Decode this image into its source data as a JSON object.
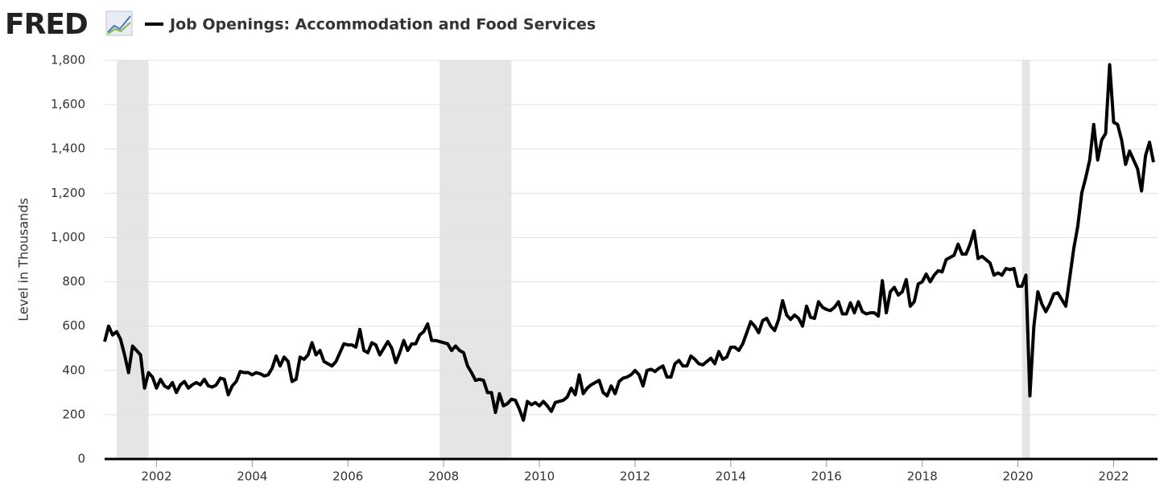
{
  "chart_data": {
    "type": "line",
    "logo": "FRED",
    "y_label": "Level in Thousands",
    "x": [
      "2000-12",
      "2001-01",
      "2001-02",
      "2001-03",
      "2001-04",
      "2001-05",
      "2001-06",
      "2001-07",
      "2001-08",
      "2001-09",
      "2001-10",
      "2001-11",
      "2001-12",
      "2002-01",
      "2002-02",
      "2002-03",
      "2002-04",
      "2002-05",
      "2002-06",
      "2002-07",
      "2002-08",
      "2002-09",
      "2002-10",
      "2002-11",
      "2002-12",
      "2003-01",
      "2003-02",
      "2003-03",
      "2003-04",
      "2003-05",
      "2003-06",
      "2003-07",
      "2003-08",
      "2003-09",
      "2003-10",
      "2003-11",
      "2003-12",
      "2004-01",
      "2004-02",
      "2004-03",
      "2004-04",
      "2004-05",
      "2004-06",
      "2004-07",
      "2004-08",
      "2004-09",
      "2004-10",
      "2004-11",
      "2004-12",
      "2005-01",
      "2005-02",
      "2005-03",
      "2005-04",
      "2005-05",
      "2005-06",
      "2005-07",
      "2005-08",
      "2005-09",
      "2005-10",
      "2005-11",
      "2005-12",
      "2006-01",
      "2006-02",
      "2006-03",
      "2006-04",
      "2006-05",
      "2006-06",
      "2006-07",
      "2006-08",
      "2006-09",
      "2006-10",
      "2006-11",
      "2006-12",
      "2007-01",
      "2007-02",
      "2007-03",
      "2007-04",
      "2007-05",
      "2007-06",
      "2007-07",
      "2007-08",
      "2007-09",
      "2007-10",
      "2007-11",
      "2007-12",
      "2008-01",
      "2008-02",
      "2008-03",
      "2008-04",
      "2008-05",
      "2008-06",
      "2008-07",
      "2008-08",
      "2008-09",
      "2008-10",
      "2008-11",
      "2008-12",
      "2009-01",
      "2009-02",
      "2009-03",
      "2009-04",
      "2009-05",
      "2009-06",
      "2009-07",
      "2009-08",
      "2009-09",
      "2009-10",
      "2009-11",
      "2009-12",
      "2010-01",
      "2010-02",
      "2010-03",
      "2010-04",
      "2010-05",
      "2010-06",
      "2010-07",
      "2010-08",
      "2010-09",
      "2010-10",
      "2010-11",
      "2010-12",
      "2011-01",
      "2011-02",
      "2011-03",
      "2011-04",
      "2011-05",
      "2011-06",
      "2011-07",
      "2011-08",
      "2011-09",
      "2011-10",
      "2011-11",
      "2011-12",
      "2012-01",
      "2012-02",
      "2012-03",
      "2012-04",
      "2012-05",
      "2012-06",
      "2012-07",
      "2012-08",
      "2012-09",
      "2012-10",
      "2012-11",
      "2012-12",
      "2013-01",
      "2013-02",
      "2013-03",
      "2013-04",
      "2013-05",
      "2013-06",
      "2013-07",
      "2013-08",
      "2013-09",
      "2013-10",
      "2013-11",
      "2013-12",
      "2014-01",
      "2014-02",
      "2014-03",
      "2014-04",
      "2014-05",
      "2014-06",
      "2014-07",
      "2014-08",
      "2014-09",
      "2014-10",
      "2014-11",
      "2014-12",
      "2015-01",
      "2015-02",
      "2015-03",
      "2015-04",
      "2015-05",
      "2015-06",
      "2015-07",
      "2015-08",
      "2015-09",
      "2015-10",
      "2015-11",
      "2015-12",
      "2016-01",
      "2016-02",
      "2016-03",
      "2016-04",
      "2016-05",
      "2016-06",
      "2016-07",
      "2016-08",
      "2016-09",
      "2016-10",
      "2016-11",
      "2016-12",
      "2017-01",
      "2017-02",
      "2017-03",
      "2017-04",
      "2017-05",
      "2017-06",
      "2017-07",
      "2017-08",
      "2017-09",
      "2017-10",
      "2017-11",
      "2017-12",
      "2018-01",
      "2018-02",
      "2018-03",
      "2018-04",
      "2018-05",
      "2018-06",
      "2018-07",
      "2018-08",
      "2018-09",
      "2018-10",
      "2018-11",
      "2018-12",
      "2019-01",
      "2019-02",
      "2019-03",
      "2019-04",
      "2019-05",
      "2019-06",
      "2019-07",
      "2019-08",
      "2019-09",
      "2019-10",
      "2019-11",
      "2019-12",
      "2020-01",
      "2020-02",
      "2020-03",
      "2020-04",
      "2020-05",
      "2020-06",
      "2020-07",
      "2020-08",
      "2020-09",
      "2020-10",
      "2020-11",
      "2020-12",
      "2021-01",
      "2021-02",
      "2021-03",
      "2021-04",
      "2021-05",
      "2021-06",
      "2021-07",
      "2021-08",
      "2021-09",
      "2021-10",
      "2021-11",
      "2021-12",
      "2022-01",
      "2022-02",
      "2022-03",
      "2022-04",
      "2022-05",
      "2022-06",
      "2022-07",
      "2022-08",
      "2022-09",
      "2022-10",
      "2022-11"
    ],
    "series": [
      {
        "name": "Job Openings: Accommodation and Food Services",
        "color": "#000000",
        "values": [
          530,
          600,
          560,
          575,
          540,
          470,
          390,
          510,
          490,
          470,
          320,
          390,
          370,
          320,
          360,
          330,
          320,
          345,
          300,
          335,
          350,
          320,
          335,
          345,
          335,
          360,
          330,
          325,
          335,
          365,
          360,
          290,
          330,
          350,
          395,
          390,
          390,
          380,
          390,
          385,
          375,
          380,
          410,
          465,
          420,
          460,
          440,
          350,
          360,
          460,
          450,
          470,
          525,
          470,
          490,
          440,
          430,
          420,
          440,
          480,
          520,
          515,
          515,
          505,
          585,
          490,
          480,
          525,
          515,
          470,
          500,
          530,
          500,
          435,
          480,
          535,
          490,
          520,
          520,
          560,
          575,
          610,
          535,
          535,
          530,
          525,
          520,
          490,
          510,
          490,
          480,
          420,
          390,
          355,
          360,
          355,
          300,
          300,
          210,
          295,
          240,
          250,
          270,
          265,
          225,
          175,
          260,
          245,
          255,
          240,
          260,
          240,
          215,
          255,
          260,
          265,
          280,
          320,
          290,
          380,
          295,
          320,
          335,
          345,
          355,
          300,
          285,
          330,
          295,
          350,
          365,
          370,
          380,
          400,
          380,
          330,
          400,
          405,
          395,
          410,
          420,
          370,
          370,
          430,
          445,
          420,
          420,
          465,
          450,
          430,
          425,
          440,
          455,
          430,
          485,
          450,
          460,
          505,
          505,
          490,
          520,
          570,
          620,
          600,
          570,
          625,
          635,
          600,
          580,
          630,
          715,
          650,
          630,
          650,
          635,
          600,
          690,
          640,
          635,
          710,
          685,
          675,
          670,
          685,
          710,
          655,
          655,
          705,
          660,
          710,
          665,
          655,
          660,
          660,
          645,
          805,
          660,
          755,
          775,
          740,
          755,
          810,
          690,
          710,
          790,
          800,
          835,
          800,
          830,
          850,
          845,
          900,
          910,
          920,
          970,
          925,
          925,
          970,
          1030,
          905,
          915,
          900,
          885,
          830,
          840,
          830,
          860,
          855,
          860,
          780,
          780,
          830,
          285,
          600,
          755,
          700,
          665,
          700,
          745,
          750,
          720,
          690,
          820,
          950,
          1050,
          1200,
          1270,
          1350,
          1510,
          1350,
          1440,
          1470,
          1780,
          1520,
          1510,
          1440,
          1330,
          1390,
          1350,
          1310,
          1210,
          1370,
          1430,
          1340
        ]
      }
    ],
    "recessions": [
      {
        "start": "2001-03",
        "end": "2001-11"
      },
      {
        "start": "2007-12",
        "end": "2009-06"
      },
      {
        "start": "2020-02",
        "end": "2020-04"
      }
    ],
    "xlim": [
      "2000-12",
      "2022-12"
    ],
    "xticks": [
      2002,
      2004,
      2006,
      2008,
      2010,
      2012,
      2014,
      2016,
      2018,
      2020,
      2022
    ],
    "ylim": [
      0,
      1800
    ],
    "yticks": [
      0,
      200,
      400,
      600,
      800,
      {
        "value": 1000,
        "label": "1,000"
      },
      {
        "value": 1200,
        "label": "1,200"
      },
      {
        "value": 1400,
        "label": "1,400"
      },
      {
        "value": 1600,
        "label": "1,600"
      },
      {
        "value": 1800,
        "label": "1,800"
      }
    ],
    "grid": true
  }
}
